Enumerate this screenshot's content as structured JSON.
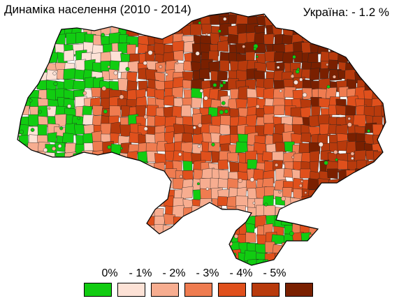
{
  "title": "Динаміка населення (2010 - 2014)",
  "national_summary": "Україна:  - 1.2 %",
  "legend": {
    "labels": [
      "0%",
      "- 1%",
      "- 2%",
      "- 3%",
      "- 4%",
      "- 5%"
    ],
    "colors": [
      "#11cc11",
      "#fde2d6",
      "#f7ad90",
      "#ef7c50",
      "#e0501c",
      "#b83a0c",
      "#7a2000"
    ]
  },
  "map": {
    "region_name": "Ukraine",
    "border_color": "#000000"
  }
}
